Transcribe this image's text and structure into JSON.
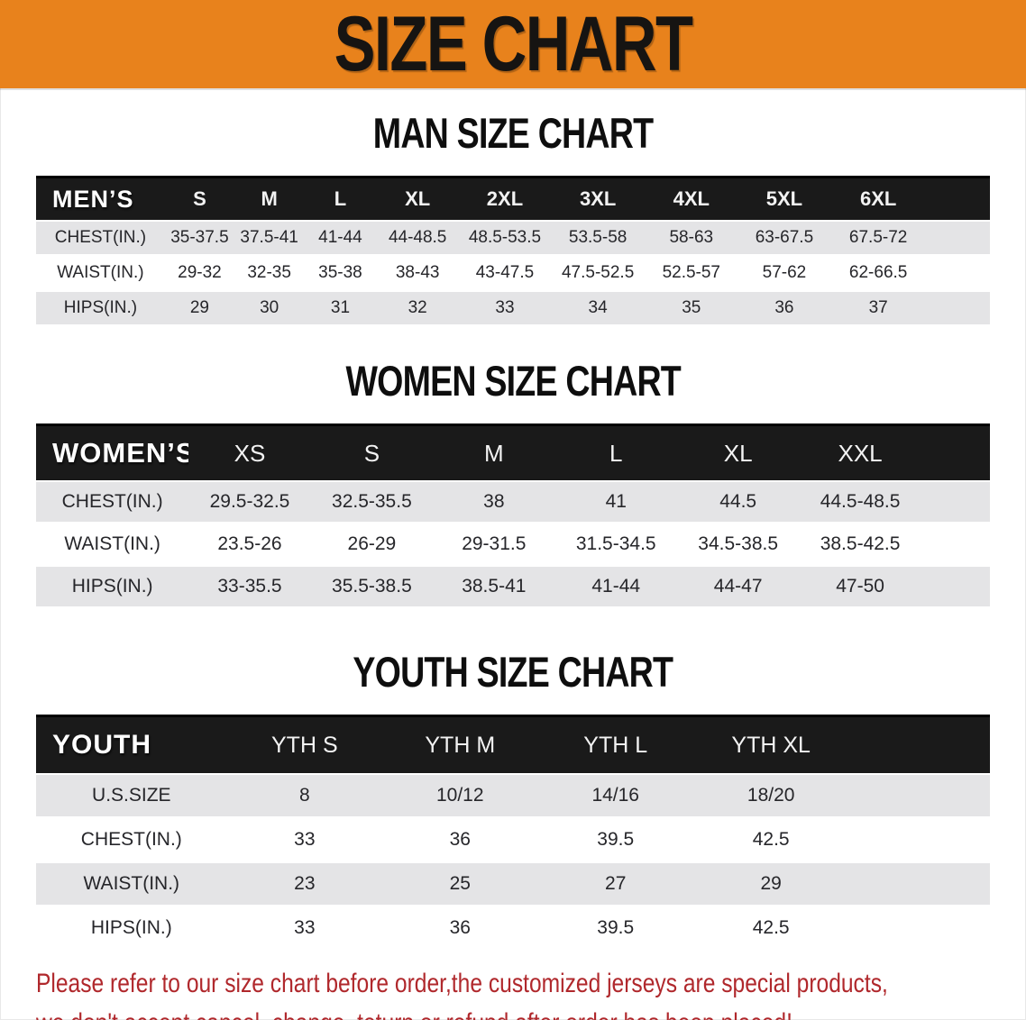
{
  "banner": {
    "title": "SIZE CHART"
  },
  "colors": {
    "banner_bg": "#E8821C",
    "table_header_bg": "#1A1A1A",
    "row_stripe": "#E4E4E6",
    "disclaimer_red": "#B0282C"
  },
  "chart_data": [
    {
      "type": "table",
      "id": "men",
      "title": "MAN SIZE CHART",
      "corner": "MEN’S",
      "columns": [
        "S",
        "M",
        "L",
        "XL",
        "2XL",
        "3XL",
        "4XL",
        "5XL",
        "6XL"
      ],
      "rows": [
        {
          "label": "CHEST(IN.)",
          "values": [
            "35-37.5",
            "37.5-41",
            "41-44",
            "44-48.5",
            "48.5-53.5",
            "53.5-58",
            "58-63",
            "63-67.5",
            "67.5-72"
          ]
        },
        {
          "label": "WAIST(IN.)",
          "values": [
            "29-32",
            "32-35",
            "35-38",
            "38-43",
            "43-47.5",
            "47.5-52.5",
            "52.5-57",
            "57-62",
            "62-66.5"
          ]
        },
        {
          "label": "HIPS(IN.)",
          "values": [
            "29",
            "30",
            "31",
            "32",
            "33",
            "34",
            "35",
            "36",
            "37"
          ]
        }
      ]
    },
    {
      "type": "table",
      "id": "women",
      "title": "WOMEN SIZE CHART",
      "corner": "WOMEN’S",
      "columns": [
        "XS",
        "S",
        "M",
        "L",
        "XL",
        "XXL"
      ],
      "rows": [
        {
          "label": "CHEST(IN.)",
          "values": [
            "29.5-32.5",
            "32.5-35.5",
            "38",
            "41",
            "44.5",
            "44.5-48.5"
          ]
        },
        {
          "label": "WAIST(IN.)",
          "values": [
            "23.5-26",
            "26-29",
            "29-31.5",
            "31.5-34.5",
            "34.5-38.5",
            "38.5-42.5"
          ]
        },
        {
          "label": "HIPS(IN.)",
          "values": [
            "33-35.5",
            "35.5-38.5",
            "38.5-41",
            "41-44",
            "44-47",
            "47-50"
          ]
        }
      ]
    },
    {
      "type": "table",
      "id": "youth",
      "title": "YOUTH SIZE CHART",
      "corner": "YOUTH",
      "columns": [
        "YTH S",
        "YTH M",
        "YTH L",
        "YTH XL"
      ],
      "rows": [
        {
          "label": "U.S.SIZE",
          "values": [
            "8",
            "10/12",
            "14/16",
            "18/20"
          ]
        },
        {
          "label": "CHEST(IN.)",
          "values": [
            "33",
            "36",
            "39.5",
            "42.5"
          ]
        },
        {
          "label": "WAIST(IN.)",
          "values": [
            "23",
            "25",
            "27",
            "29"
          ]
        },
        {
          "label": "HIPS(IN.)",
          "values": [
            "33",
            "36",
            "39.5",
            "42.5"
          ]
        }
      ]
    }
  ],
  "disclaimer": {
    "line1": "Please refer to our size chart before order,the customized jerseys are special products,",
    "line2": "we don't accept cancel, change, teturn or refund after order has been placed!"
  }
}
